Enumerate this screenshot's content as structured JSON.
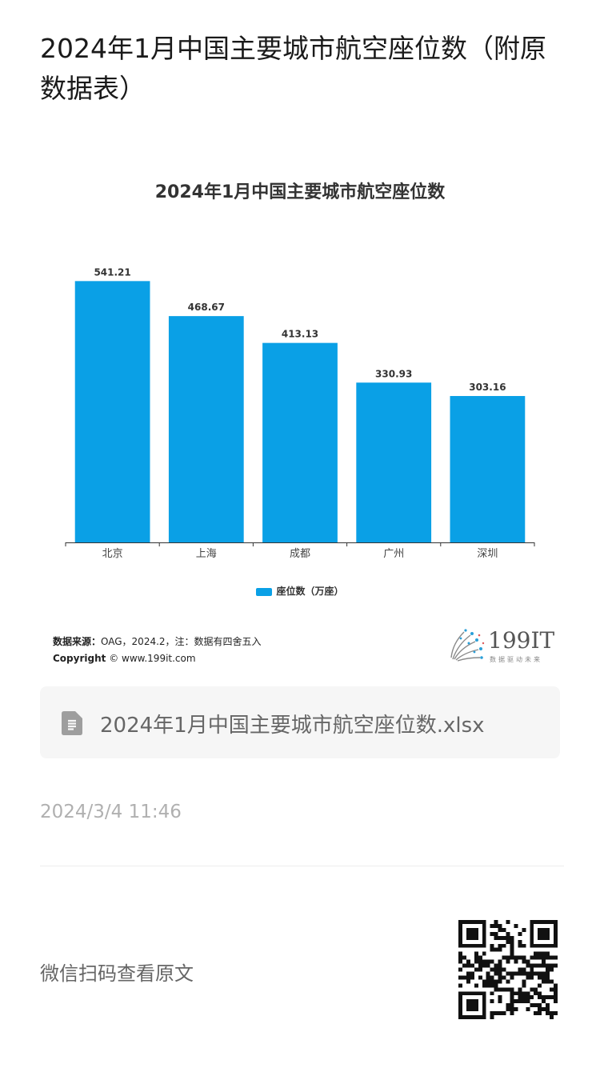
{
  "article": {
    "title": "2024年1月中国主要城市航空座位数（附原数据表）"
  },
  "chart_data": {
    "type": "bar",
    "title": "2024年1月中国主要城市航空座位数",
    "categories": [
      "北京",
      "上海",
      "成都",
      "广州",
      "深圳"
    ],
    "series": [
      {
        "name": "座位数（万座）",
        "values": [
          541.21,
          468.67,
          413.13,
          330.93,
          303.16
        ],
        "color": "#0aa0e6"
      }
    ],
    "value_labels": [
      "541.21",
      "468.67",
      "413.13",
      "330.93",
      "303.16"
    ],
    "ylim": [
      0,
      560
    ],
    "grid": false,
    "legend_position": "bottom-center"
  },
  "source": {
    "label": "数据来源：",
    "text": "OAG，2024.2，注：数据有四舍五入",
    "copyright_label": "Copyright",
    "copyright_text": "© www.199it.com"
  },
  "logo": {
    "text": "199IT",
    "subtitle": "数据驱动未来"
  },
  "attachment": {
    "icon": "spreadsheet-file-icon",
    "filename": "2024年1月中国主要城市航空座位数.xlsx"
  },
  "meta": {
    "timestamp": "2024/3/4 11:46",
    "scan_prompt": "微信扫码查看原文",
    "qr_icon": "qr-code-icon"
  }
}
